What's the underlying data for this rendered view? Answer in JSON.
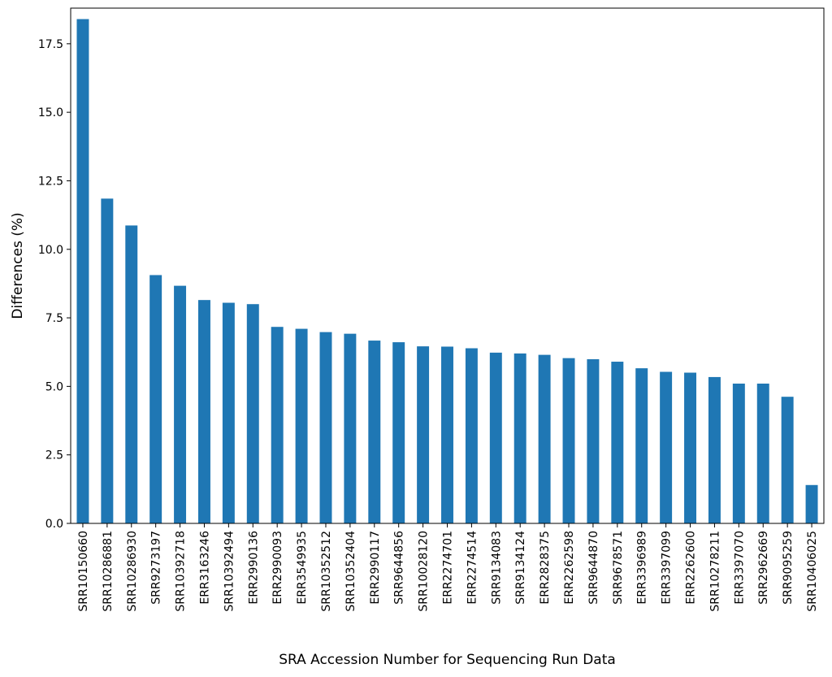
{
  "chart_data": {
    "type": "bar",
    "title": "",
    "xlabel": "SRA Accession Number for Sequencing Run Data",
    "ylabel": "Differences (%)",
    "ylim": [
      0,
      18.8
    ],
    "yticks": [
      "0.0",
      "2.5",
      "5.0",
      "7.5",
      "10.0",
      "12.5",
      "15.0",
      "17.5"
    ],
    "bar_color": "#1f77b4",
    "grid": false,
    "categories": [
      "SRR10150660",
      "SRR10286881",
      "SRR10286930",
      "SRR9273197",
      "SRR10392718",
      "ERR3163246",
      "SRR10392494",
      "ERR2990136",
      "ERR2990093",
      "ERR3549935",
      "SRR10352512",
      "SRR10352404",
      "ERR2990117",
      "SRR9644856",
      "SRR10028120",
      "ERR2274701",
      "ERR2274514",
      "SRR9134083",
      "SRR9134124",
      "ERR2828375",
      "ERR2262598",
      "SRR9644870",
      "SRR9678571",
      "ERR3396989",
      "ERR3397099",
      "ERR2262600",
      "SRR10278211",
      "ERR3397070",
      "SRR2962669",
      "SRR9095259",
      "SRR10406025"
    ],
    "values": [
      18.4,
      11.85,
      10.87,
      9.06,
      8.67,
      8.15,
      8.05,
      8.0,
      7.17,
      7.1,
      6.98,
      6.92,
      6.67,
      6.61,
      6.46,
      6.45,
      6.39,
      6.23,
      6.2,
      6.15,
      6.03,
      5.99,
      5.9,
      5.66,
      5.53,
      5.5,
      5.34,
      5.1,
      5.1,
      4.62,
      1.4
    ]
  }
}
